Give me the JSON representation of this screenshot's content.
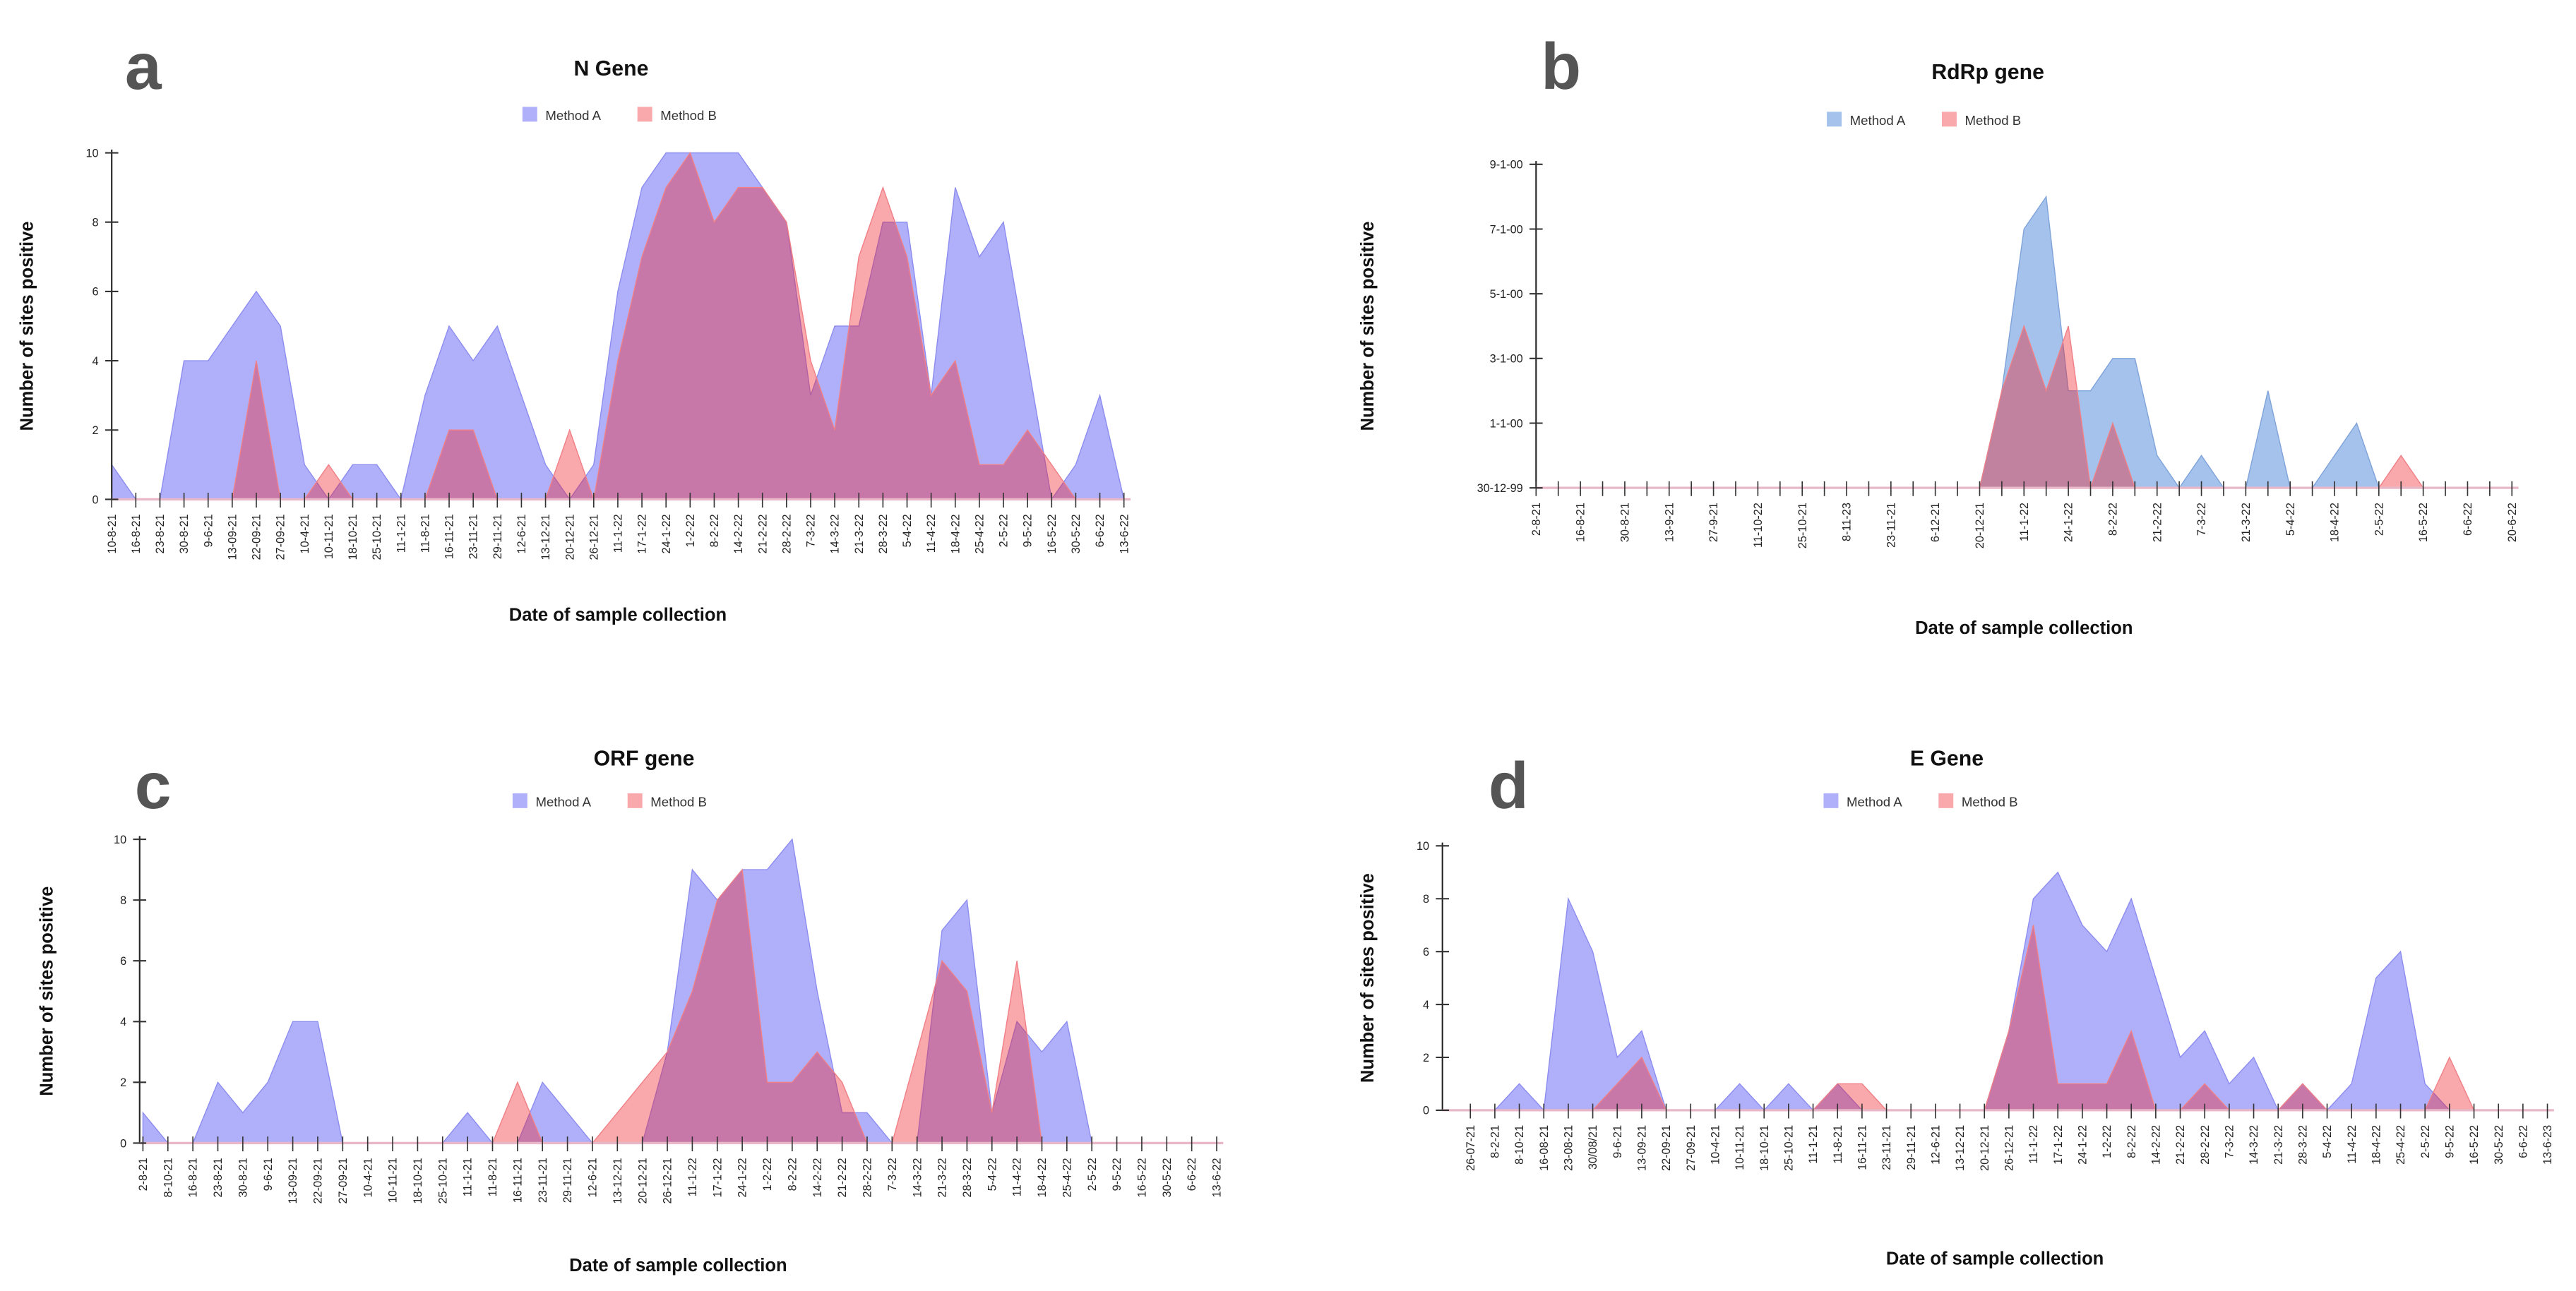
{
  "colors": {
    "method_a": "#b0b0fa",
    "method_a_rdrp": "#a4c2ec",
    "method_b": "#f9a8ac",
    "overlap": "#c97ab5"
  },
  "chart_data": [
    {
      "panel": "a",
      "type": "area",
      "title": "N Gene",
      "xlabel": "Date of sample collection",
      "ylabel": "Number of sites positive",
      "ylim": [
        0,
        10
      ],
      "yticks": [
        0,
        2,
        4,
        6,
        8,
        10
      ],
      "ytick_labels": [
        "0",
        "2",
        "4",
        "6",
        "8",
        "10"
      ],
      "legend": {
        "placement": "top-center",
        "entries": [
          "Method A",
          "Method B"
        ]
      },
      "grid": false,
      "categories": [
        "10-8-21",
        "16-8-21",
        "23-8-21",
        "30-8-21",
        "9-6-21",
        "13-09-21",
        "22-09-21",
        "27-09-21",
        "10-4-21",
        "10-11-21",
        "18-10-21",
        "25-10-21",
        "11-1-21",
        "11-8-21",
        "16-11-21",
        "23-11-21",
        "29-11-21",
        "12-6-21",
        "13-12-21",
        "20-12-21",
        "26-12-21",
        "11-1-22",
        "17-1-22",
        "24-1-22",
        "1-2-22",
        "8-2-22",
        "14-2-22",
        "21-2-22",
        "28-2-22",
        "7-3-22",
        "14-3-22",
        "21-3-22",
        "28-3-22",
        "5-4-22",
        "11-4-22",
        "18-4-22",
        "25-4-22",
        "2-5-22",
        "9-5-22",
        "16-5-22",
        "30-5-22",
        "6-6-22",
        "13-6-22"
      ],
      "label_every": 1,
      "series": [
        {
          "name": "Method A",
          "values": [
            1,
            0,
            0,
            4,
            4,
            5,
            6,
            5,
            1,
            0,
            1,
            1,
            0,
            3,
            5,
            4,
            5,
            3,
            1,
            0,
            1,
            6,
            9,
            10,
            10,
            10,
            10,
            9,
            8,
            3,
            5,
            5,
            8,
            8,
            3,
            9,
            7,
            8,
            4,
            0,
            1,
            3,
            0
          ]
        },
        {
          "name": "Method B",
          "values": [
            0,
            0,
            0,
            0,
            0,
            0,
            4,
            0,
            0,
            1,
            0,
            0,
            0,
            0,
            2,
            2,
            0,
            0,
            0,
            2,
            0,
            4,
            7,
            9,
            10,
            8,
            9,
            9,
            8,
            4,
            2,
            7,
            9,
            7,
            3,
            4,
            1,
            1,
            2,
            1,
            0,
            0,
            0
          ]
        }
      ]
    },
    {
      "panel": "b",
      "type": "area",
      "title": "RdRp gene",
      "xlabel": "Date of sample collection",
      "ylabel": "Number of sites positive",
      "ylim": [
        0,
        10
      ],
      "yticks": [
        0,
        2,
        4,
        6,
        8,
        10
      ],
      "ytick_labels": [
        "30-12-99",
        "1-1-00",
        "3-1-00",
        "5-1-00",
        "7-1-00",
        "9-1-00"
      ],
      "legend": {
        "placement": "top-center",
        "entries": [
          "Method A",
          "Method B"
        ]
      },
      "grid": false,
      "categories": [
        "2-8-21",
        "",
        "16-8-21",
        "",
        "30-8-21",
        "",
        "13-9-21",
        "",
        "27-9-21",
        "",
        "11-10-22",
        "",
        "25-10-21",
        "",
        "8-11-23",
        "",
        "23-11-21",
        "",
        "6-12-21",
        "",
        "20-12-21",
        "",
        "11-1-22",
        "",
        "24-1-22",
        "",
        "8-2-22",
        "",
        "21-2-22",
        "",
        "7-3-22",
        "",
        "21-3-22",
        "",
        "5-4-22",
        "",
        "18-4-22",
        "",
        "2-5-22",
        "",
        "16-5-22",
        "",
        "6-6-22",
        "",
        "20-6-22"
      ],
      "label_every": 2,
      "series": [
        {
          "name": "Method A",
          "values": [
            0,
            0,
            0,
            0,
            0,
            0,
            0,
            0,
            0,
            0,
            0,
            0,
            0,
            0,
            0,
            0,
            0,
            0,
            0,
            0,
            0,
            3,
            8,
            9,
            3,
            3,
            4,
            4,
            1,
            0,
            1,
            0,
            0,
            3,
            0,
            0,
            1,
            2,
            0,
            0,
            0,
            0,
            0,
            0,
            0
          ]
        },
        {
          "name": "Method B",
          "values": [
            0,
            0,
            0,
            0,
            0,
            0,
            0,
            0,
            0,
            0,
            0,
            0,
            0,
            0,
            0,
            0,
            0,
            0,
            0,
            0,
            0,
            3,
            5,
            3,
            5,
            0,
            2,
            0,
            0,
            0,
            0,
            0,
            0,
            0,
            0,
            0,
            0,
            0,
            0,
            1,
            0,
            0,
            0,
            0,
            0
          ]
        }
      ]
    },
    {
      "panel": "c",
      "type": "area",
      "title": "ORF gene",
      "xlabel": "Date of sample collection",
      "ylabel": "Number of sites positive",
      "ylim": [
        0,
        10
      ],
      "yticks": [
        0,
        2,
        4,
        6,
        8,
        10
      ],
      "ytick_labels": [
        "0",
        "2",
        "4",
        "6",
        "8",
        "10"
      ],
      "legend": {
        "placement": "top-center",
        "entries": [
          "Method A",
          "Method B"
        ]
      },
      "grid": false,
      "categories": [
        "2-8-21",
        "8-10-21",
        "16-8-21",
        "23-8-21",
        "30-8-21",
        "9-6-21",
        "13-09-21",
        "22-09-21",
        "27-09-21",
        "10-4-21",
        "10-11-21",
        "18-10-21",
        "25-10-21",
        "11-1-21",
        "11-8-21",
        "16-11-21",
        "23-11-21",
        "29-11-21",
        "12-6-21",
        "13-12-21",
        "20-12-21",
        "26-12-21",
        "11-1-22",
        "17-1-22",
        "24-1-22",
        "1-2-22",
        "8-2-22",
        "14-2-22",
        "21-2-22",
        "28-2-22",
        "7-3-22",
        "14-3-22",
        "21-3-22",
        "28-3-22",
        "5-4-22",
        "11-4-22",
        "18-4-22",
        "25-4-22",
        "2-5-22",
        "9-5-22",
        "16-5-22",
        "30-5-22",
        "6-6-22",
        "13-6-22"
      ],
      "label_every": 1,
      "series": [
        {
          "name": "Method A",
          "values": [
            1,
            0,
            0,
            2,
            1,
            2,
            4,
            4,
            0,
            0,
            0,
            0,
            0,
            1,
            0,
            0,
            2,
            1,
            0,
            0,
            0,
            3,
            9,
            8,
            9,
            9,
            10,
            5,
            1,
            1,
            0,
            0,
            7,
            8,
            1,
            4,
            3,
            4,
            0,
            0,
            0,
            0,
            0,
            0
          ]
        },
        {
          "name": "Method B",
          "values": [
            0,
            0,
            0,
            0,
            0,
            0,
            0,
            0,
            0,
            0,
            0,
            0,
            0,
            0,
            0,
            2,
            0,
            0,
            0,
            1,
            2,
            3,
            5,
            8,
            9,
            2,
            2,
            3,
            2,
            0,
            0,
            3,
            6,
            5,
            1,
            6,
            0,
            0,
            0,
            0,
            0,
            0,
            0,
            0
          ]
        }
      ]
    },
    {
      "panel": "d",
      "type": "area",
      "title": "E Gene",
      "xlabel": "Date of sample collection",
      "ylabel": "Number of sites positive",
      "ylim": [
        0,
        10
      ],
      "yticks": [
        0,
        2,
        4,
        6,
        8,
        10
      ],
      "ytick_labels": [
        "0",
        "2",
        "4",
        "6",
        "8",
        "10"
      ],
      "legend": {
        "placement": "top-center",
        "entries": [
          "Method A",
          "Method B"
        ]
      },
      "grid": false,
      "categories": [
        "26-07-21",
        "8-2-21",
        "8-10-21",
        "16-08-21",
        "23-08-21",
        "30/08/21",
        "9-6-21",
        "13-09-21",
        "22-09-21",
        "27-09-21",
        "10-4-21",
        "10-11-21",
        "18-10-21",
        "25-10-21",
        "11-1-21",
        "11-8-21",
        "16-11-21",
        "23-11-21",
        "29-11-21",
        "12-6-21",
        "13-12-21",
        "20-12-21",
        "26-12-21",
        "11-1-22",
        "17-1-22",
        "24-1-22",
        "1-2-22",
        "8-2-22",
        "14-2-22",
        "21-2-22",
        "28-2-22",
        "7-3-22",
        "14-3-22",
        "21-3-22",
        "28-3-22",
        "5-4-22",
        "11-4-22",
        "18-4-22",
        "25-4-22",
        "2-5-22",
        "9-5-22",
        "16-5-22",
        "30-5-22",
        "6-6-22",
        "13-6-23"
      ],
      "label_every": 1,
      "series": [
        {
          "name": "Method A",
          "values": [
            0,
            0,
            1,
            0,
            8,
            6,
            2,
            3,
            0,
            0,
            0,
            1,
            0,
            1,
            0,
            1,
            0,
            0,
            0,
            0,
            0,
            0,
            3,
            8,
            9,
            7,
            6,
            8,
            5,
            2,
            3,
            1,
            2,
            0,
            1,
            0,
            1,
            5,
            6,
            1,
            0,
            0,
            0,
            0,
            0
          ]
        },
        {
          "name": "Method B",
          "values": [
            0,
            0,
            0,
            0,
            0,
            0,
            1,
            2,
            0,
            0,
            0,
            0,
            0,
            0,
            0,
            1,
            1,
            0,
            0,
            0,
            0,
            0,
            3,
            7,
            1,
            1,
            1,
            3,
            0,
            0,
            1,
            0,
            0,
            0,
            1,
            0,
            0,
            0,
            0,
            0,
            2,
            0,
            0,
            0,
            0
          ]
        }
      ]
    }
  ]
}
